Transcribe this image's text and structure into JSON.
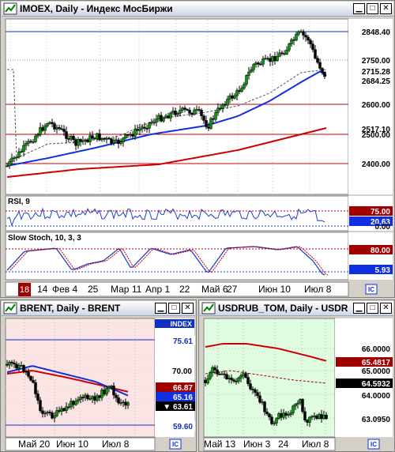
{
  "main": {
    "title": "IMOEX, Daily - Индекс МосБиржи",
    "price_levels": [
      "2848.40",
      "2750.00",
      "2715.28",
      "2684.25",
      "2600.00",
      "2517.10",
      "2500.00",
      "2400.00"
    ],
    "x_labels": [
      "14",
      "Фев 4",
      "25",
      "Мар 11",
      "Апр 1",
      "22",
      "Май 6",
      "27",
      "Июн 10",
      "Июл 8"
    ],
    "current_day": "18",
    "rsi": {
      "title": "RSI, 9",
      "levels": [
        "75.00",
        "20.63",
        "0.00"
      ]
    },
    "stoch": {
      "title": "Slow Stoch, 10, 3, 3",
      "levels": [
        "80.00",
        "5.93"
      ]
    }
  },
  "brent": {
    "title": "BRENT, Daily - BRENT",
    "badge": "INDEX",
    "price_levels": [
      "75.61",
      "70.00",
      "66.87",
      "65.16",
      "63.61",
      "59.60"
    ],
    "x_labels": [
      "Май 20",
      "Июн 10",
      "Июл 8"
    ]
  },
  "usdrub": {
    "title": "USDRUB_TOM, Daily - USDR",
    "price_levels": [
      "66.0000",
      "65.4817",
      "65.0000",
      "64.5932",
      "64.0000",
      "63.0950"
    ],
    "x_labels": [
      "Май 13",
      "Июн 3",
      "24",
      "Июл 8"
    ]
  },
  "colors": {
    "green": "#00a000",
    "red": "#cc0000",
    "blue": "#1030e0",
    "maroon": "#a00000",
    "brent_bg": "#fbe4e4",
    "usd_bg": "#e0fce0"
  }
}
